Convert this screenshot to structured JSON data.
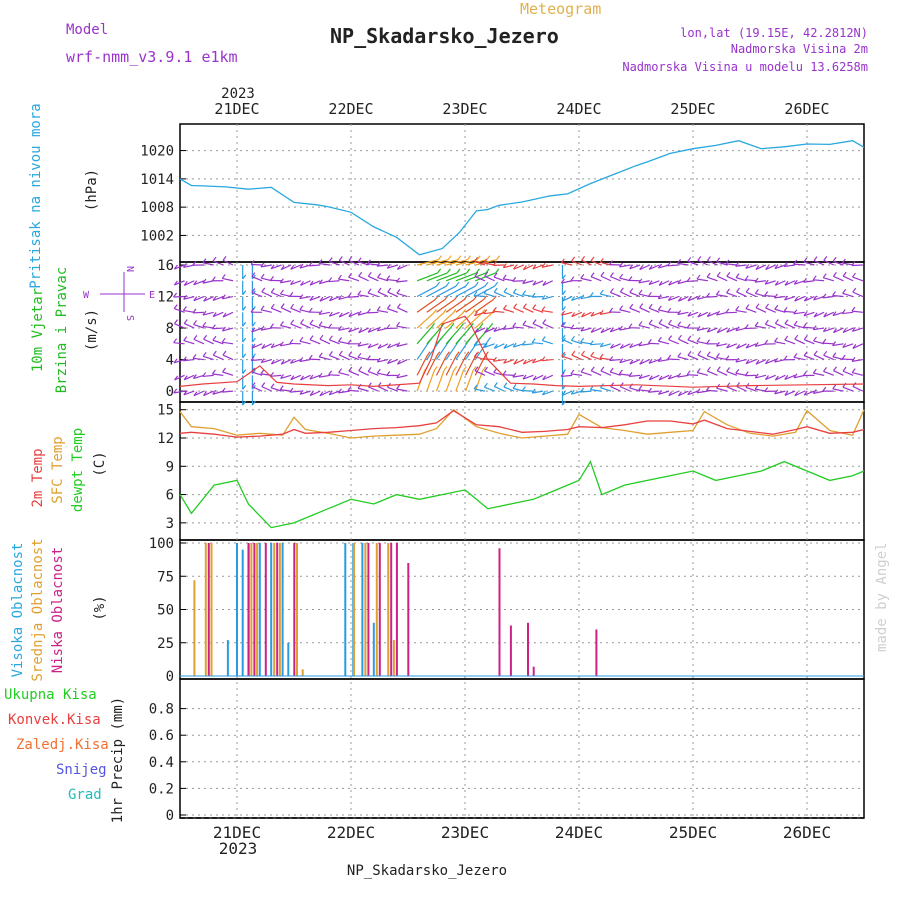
{
  "header": {
    "model_label": "Model",
    "model_name": "wrf-nmm_v3.9.1 e1km",
    "meteogram_label": "Meteogram",
    "station_title": "NP_Skadarsko_Jezero",
    "coords": "lon,lat (19.15E, 42.2812N)",
    "elevation": "Nadmorska Visina 2m",
    "model_elevation": "Nadmorska Visina u modelu 13.6258m",
    "footer_station": "NP_Skadarsko_Jezero",
    "watermark": "made by Angel"
  },
  "colors": {
    "pressure": "#29a8e0",
    "wind_label": "#22bb22",
    "wind_axis": "#9933cc",
    "temp2m": "#e84040",
    "sfc": "#e0a030",
    "dew": "#22cc22",
    "high_cloud": "#2a9be0",
    "mid_cloud": "#e0a030",
    "low_cloud": "#cc2288",
    "precip_total": "#22cc22",
    "precip_conv": "#e84040",
    "precip_frozen": "#f07030",
    "snow": "#5555dd",
    "hail": "#22bbbb",
    "grid": "#999999"
  },
  "time_axis": {
    "labels": [
      "21DEC",
      "22DEC",
      "23DEC",
      "24DEC",
      "25DEC",
      "26DEC"
    ],
    "year": "2023",
    "range_days": [
      -0.5,
      5.5
    ]
  },
  "panels": {
    "pressure": {
      "ylabel1": "Pritisak na nivou mora",
      "unit": "(hPa)",
      "ticks": [
        "1020",
        "1014",
        "1008",
        "1002"
      ]
    },
    "wind": {
      "ylabel1": "10m Vjetar",
      "ylabel2": "Brzina i Pravac",
      "unit": "(m/s)",
      "ticks": [
        "16",
        "12",
        "8",
        "4",
        "0"
      ],
      "compass": {
        "n": "N",
        "s": "S",
        "e": "E",
        "w": "W"
      }
    },
    "temp": {
      "ylabel1": "2m Temp",
      "ylabel2": "SFC Temp",
      "ylabel3": "dewpt Temp",
      "unit": "(C)",
      "ticks": [
        "15",
        "12",
        "9",
        "6",
        "3"
      ]
    },
    "cloud": {
      "ylabel1": "Visoka Oblacnost",
      "ylabel2": "Srednja Oblacnost",
      "ylabel3": "Niska Oblacnost",
      "unit": "(%)",
      "ticks": [
        "100",
        "75",
        "50",
        "25",
        "0"
      ]
    },
    "precip": {
      "unit": "1hr Precip (mm)",
      "ticks": [
        "0.8",
        "0.6",
        "0.4",
        "0.2",
        "0"
      ],
      "legend": [
        "Ukupna Kisa",
        "Konvek.Kisa",
        "Zaledj.Kisa",
        "Snijeg",
        "Grad"
      ]
    }
  },
  "chart_data": [
    {
      "type": "line",
      "title": "",
      "ylabel": "Pritisak na nivou mora (hPa)",
      "ylim": [
        997,
        1025
      ],
      "series": [
        {
          "x": [
            -0.5,
            -0.4,
            -0.3,
            -0.1,
            0.1,
            0.3,
            0.5,
            0.7,
            0.8,
            1.0,
            1.2,
            1.4,
            1.6,
            1.8,
            1.95,
            2.1,
            2.2,
            2.3,
            2.5,
            2.75,
            2.9,
            3.1,
            3.3,
            3.5,
            3.6,
            3.8,
            4.0,
            4.2,
            4.4,
            4.6,
            4.8,
            5.0,
            5.2,
            5.4,
            5.5
          ],
          "y": [
            1014,
            1012.6,
            1012.5,
            1012.3,
            1011.8,
            1012.2,
            1009,
            1008.5,
            1008.1,
            1006.9,
            1003.8,
            1001.6,
            997.9,
            999.2,
            1002.6,
            1007.2,
            1007.5,
            1008.4,
            1009.1,
            1010.4,
            1010.8,
            1013,
            1014.9,
            1016.8,
            1017.6,
            1019.4,
            1020.4,
            1021.1,
            1022.1,
            1020.4,
            1020.8,
            1021.4,
            1021.3,
            1022.1,
            1020.7
          ]
        }
      ]
    },
    {
      "type": "line",
      "title": "",
      "ylabel": "10m Vjetar Brzina i Pravac (m/s)",
      "ylim": [
        -1,
        16
      ],
      "note": "wind barbs and multi-level direction arrows",
      "series": [
        {
          "x": [
            -0.5,
            -0.3,
            0.0,
            0.2,
            0.35,
            0.5,
            0.8,
            1.0,
            1.2,
            1.5,
            1.6,
            1.7,
            1.8,
            2.0,
            2.05,
            2.2,
            2.4,
            2.6,
            2.8,
            3.0,
            3.5,
            4.0,
            4.5,
            5.0,
            5.5
          ],
          "y": [
            0.6,
            0.9,
            1.2,
            3.2,
            1.1,
            0.9,
            0.7,
            0.8,
            0.6,
            0.9,
            1.0,
            4.0,
            8.5,
            9.5,
            8.5,
            4.0,
            1.0,
            0.9,
            0.7,
            0.6,
            0.8,
            0.5,
            0.7,
            0.8,
            0.9
          ]
        }
      ]
    },
    {
      "type": "line",
      "title": "",
      "ylabel": "2m Temp / SFC Temp / dewpt Temp (C)",
      "ylim": [
        1.5,
        15.5
      ],
      "series": [
        {
          "x": [
            -0.5,
            -0.4,
            -0.2,
            0.0,
            0.2,
            0.4,
            0.5,
            0.6,
            0.8,
            1.0,
            1.2,
            1.4,
            1.6,
            1.75,
            1.9,
            2.1,
            2.3,
            2.5,
            2.7,
            2.9,
            3.0,
            3.2,
            3.4,
            3.6,
            3.8,
            4.0,
            4.1,
            4.3,
            4.5,
            4.7,
            4.9,
            5.0,
            5.2,
            5.4,
            5.5
          ],
          "y": [
            12.5,
            12.6,
            12.4,
            12.1,
            12.2,
            12.4,
            12.9,
            12.5,
            12.6,
            12.8,
            13.0,
            13.1,
            13.3,
            13.6,
            14.9,
            13.4,
            13.2,
            12.6,
            12.7,
            12.9,
            13.2,
            13.1,
            13.4,
            13.8,
            13.8,
            13.5,
            13.9,
            13.0,
            12.7,
            12.4,
            12.9,
            13.2,
            12.5,
            12.6,
            12.9
          ]
        },
        {
          "x": [
            -0.5,
            -0.4,
            -0.2,
            0.0,
            0.2,
            0.4,
            0.5,
            0.6,
            0.8,
            1.0,
            1.2,
            1.4,
            1.6,
            1.75,
            1.9,
            2.1,
            2.3,
            2.5,
            2.7,
            2.9,
            3.0,
            3.2,
            3.4,
            3.6,
            3.8,
            4.0,
            4.1,
            4.3,
            4.5,
            4.7,
            4.9,
            5.0,
            5.2,
            5.4,
            5.5
          ],
          "y": [
            14.8,
            13.2,
            13.0,
            12.3,
            12.5,
            12.3,
            14.2,
            12.9,
            12.5,
            12.0,
            12.2,
            12.3,
            12.4,
            13.0,
            15.0,
            13.2,
            12.5,
            12.0,
            12.2,
            12.4,
            14.5,
            13.1,
            12.8,
            12.4,
            12.6,
            12.8,
            14.8,
            13.4,
            12.5,
            12.2,
            12.6,
            14.9,
            12.8,
            12.3,
            15.0
          ]
        },
        {
          "x": [
            -0.5,
            -0.4,
            -0.2,
            0.0,
            0.1,
            0.3,
            0.5,
            0.6,
            0.8,
            1.0,
            1.2,
            1.4,
            1.6,
            1.8,
            2.0,
            2.1,
            2.2,
            2.4,
            2.6,
            2.8,
            3.0,
            3.1,
            3.2,
            3.4,
            3.6,
            3.8,
            4.0,
            4.2,
            4.4,
            4.6,
            4.8,
            5.0,
            5.2,
            5.4,
            5.5
          ],
          "y": [
            6.0,
            4.0,
            7.0,
            7.5,
            5.0,
            2.5,
            3.0,
            3.5,
            4.5,
            5.5,
            5.0,
            6.0,
            5.5,
            6.0,
            6.5,
            5.5,
            4.5,
            5.0,
            5.5,
            6.5,
            7.5,
            9.5,
            6.0,
            7.0,
            7.5,
            8.0,
            8.5,
            7.5,
            8.0,
            8.5,
            9.5,
            8.5,
            7.5,
            8.0,
            8.5
          ]
        }
      ]
    },
    {
      "type": "bar",
      "title": "",
      "ylabel": "Oblacnost (%)",
      "ylim": [
        0,
        100
      ],
      "series": [
        {
          "x": [
            -0.08,
            0.0,
            0.05,
            0.1,
            0.2,
            0.3,
            0.4,
            0.45,
            0.95,
            1.02,
            1.1,
            1.2
          ],
          "values": [
            27,
            100,
            95,
            100,
            100,
            100,
            100,
            25,
            100,
            100,
            100,
            40
          ]
        },
        {
          "x": [
            -0.4,
            -0.3,
            -0.25,
            0.1,
            0.15,
            0.3,
            0.35,
            0.5,
            0.55,
            1.0,
            1.1,
            1.2,
            1.3,
            1.35
          ],
          "values": [
            72,
            100,
            100,
            100,
            100,
            100,
            100,
            100,
            5,
            100,
            100,
            100,
            100,
            27
          ]
        },
        {
          "x": [
            -0.3,
            0.05,
            0.1,
            0.2,
            0.3,
            0.45,
            1.1,
            1.2,
            1.3,
            1.35,
            1.45,
            2.25,
            2.35,
            2.5,
            2.55,
            3.1
          ],
          "values": [
            100,
            100,
            100,
            100,
            100,
            100,
            100,
            100,
            100,
            100,
            85,
            96,
            38,
            40,
            7,
            35
          ]
        }
      ]
    },
    {
      "type": "line",
      "title": "",
      "ylabel": "1hr Precip (mm)",
      "ylim": [
        0,
        1.0
      ],
      "series": []
    }
  ]
}
